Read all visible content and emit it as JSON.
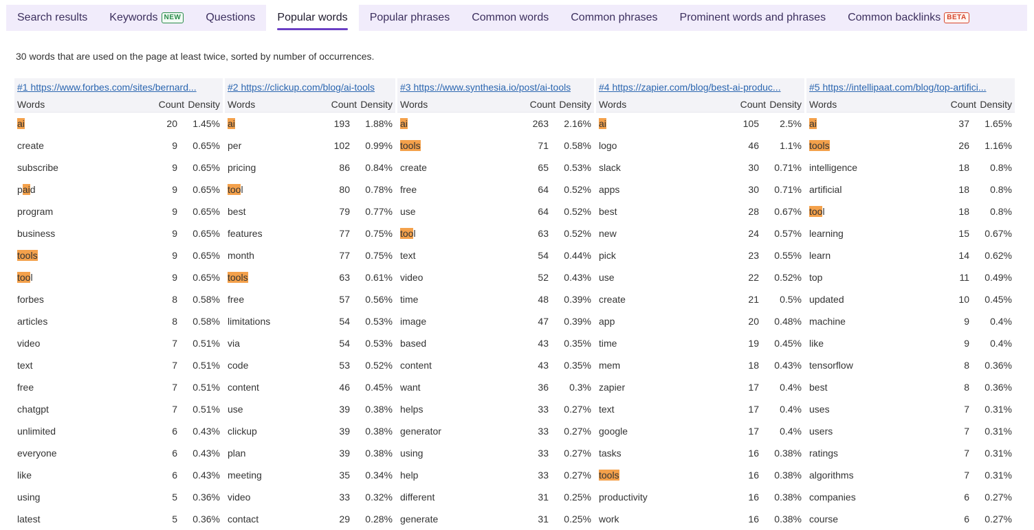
{
  "tabs": [
    {
      "label": "Search results"
    },
    {
      "label": "Keywords",
      "badge": "NEW"
    },
    {
      "label": "Questions"
    },
    {
      "label": "Popular words",
      "active": true
    },
    {
      "label": "Popular phrases"
    },
    {
      "label": "Common words"
    },
    {
      "label": "Common phrases"
    },
    {
      "label": "Prominent words and phrases"
    },
    {
      "label": "Common backlinks",
      "badge": "BETA"
    }
  ],
  "summary": "30 words that are used on the page at least twice, sorted by number of occurrences.",
  "headers": {
    "words": "Words",
    "count": "Count",
    "density": "Density"
  },
  "highlight_color": "#f4a14b",
  "columns": [
    {
      "title": "#1 https://www.forbes.com/sites/bernard...",
      "rows": [
        [
          "ai",
          "20",
          "1.45%"
        ],
        [
          "create",
          "9",
          "0.65%"
        ],
        [
          "subscribe",
          "9",
          "0.65%"
        ],
        [
          "paid",
          "9",
          "0.65%"
        ],
        [
          "program",
          "9",
          "0.65%"
        ],
        [
          "business",
          "9",
          "0.65%"
        ],
        [
          "tools",
          "9",
          "0.65%"
        ],
        [
          "tool",
          "9",
          "0.65%"
        ],
        [
          "forbes",
          "8",
          "0.58%"
        ],
        [
          "articles",
          "8",
          "0.58%"
        ],
        [
          "video",
          "7",
          "0.51%"
        ],
        [
          "text",
          "7",
          "0.51%"
        ],
        [
          "free",
          "7",
          "0.51%"
        ],
        [
          "chatgpt",
          "7",
          "0.51%"
        ],
        [
          "unlimited",
          "6",
          "0.43%"
        ],
        [
          "everyone",
          "6",
          "0.43%"
        ],
        [
          "like",
          "6",
          "0.43%"
        ],
        [
          "using",
          "5",
          "0.36%"
        ],
        [
          "latest",
          "5",
          "0.36%"
        ]
      ]
    },
    {
      "title": "#2 https://clickup.com/blog/ai-tools",
      "rows": [
        [
          "ai",
          "193",
          "1.88%"
        ],
        [
          "per",
          "102",
          "0.99%"
        ],
        [
          "pricing",
          "86",
          "0.84%"
        ],
        [
          "tool",
          "80",
          "0.78%"
        ],
        [
          "best",
          "79",
          "0.77%"
        ],
        [
          "features",
          "77",
          "0.75%"
        ],
        [
          "month",
          "77",
          "0.75%"
        ],
        [
          "tools",
          "63",
          "0.61%"
        ],
        [
          "free",
          "57",
          "0.56%"
        ],
        [
          "limitations",
          "54",
          "0.53%"
        ],
        [
          "via",
          "54",
          "0.53%"
        ],
        [
          "code",
          "53",
          "0.52%"
        ],
        [
          "content",
          "46",
          "0.45%"
        ],
        [
          "use",
          "39",
          "0.38%"
        ],
        [
          "clickup",
          "39",
          "0.38%"
        ],
        [
          "plan",
          "39",
          "0.38%"
        ],
        [
          "meeting",
          "35",
          "0.34%"
        ],
        [
          "video",
          "33",
          "0.32%"
        ],
        [
          "contact",
          "29",
          "0.28%"
        ]
      ]
    },
    {
      "title": "#3 https://www.synthesia.io/post/ai-tools",
      "rows": [
        [
          "ai",
          "263",
          "2.16%"
        ],
        [
          "tools",
          "71",
          "0.58%"
        ],
        [
          "create",
          "65",
          "0.53%"
        ],
        [
          "free",
          "64",
          "0.52%"
        ],
        [
          "use",
          "64",
          "0.52%"
        ],
        [
          "tool",
          "63",
          "0.52%"
        ],
        [
          "text",
          "54",
          "0.44%"
        ],
        [
          "video",
          "52",
          "0.43%"
        ],
        [
          "time",
          "48",
          "0.39%"
        ],
        [
          "image",
          "47",
          "0.39%"
        ],
        [
          "based",
          "43",
          "0.35%"
        ],
        [
          "content",
          "43",
          "0.35%"
        ],
        [
          "want",
          "36",
          "0.3%"
        ],
        [
          "helps",
          "33",
          "0.27%"
        ],
        [
          "generator",
          "33",
          "0.27%"
        ],
        [
          "using",
          "33",
          "0.27%"
        ],
        [
          "help",
          "33",
          "0.27%"
        ],
        [
          "different",
          "31",
          "0.25%"
        ],
        [
          "generate",
          "31",
          "0.25%"
        ]
      ]
    },
    {
      "title": "#4 https://zapier.com/blog/best-ai-produc...",
      "rows": [
        [
          "ai",
          "105",
          "2.5%"
        ],
        [
          "logo",
          "46",
          "1.1%"
        ],
        [
          "slack",
          "30",
          "0.71%"
        ],
        [
          "apps",
          "30",
          "0.71%"
        ],
        [
          "best",
          "28",
          "0.67%"
        ],
        [
          "new",
          "24",
          "0.57%"
        ],
        [
          "pick",
          "23",
          "0.55%"
        ],
        [
          "use",
          "22",
          "0.52%"
        ],
        [
          "create",
          "21",
          "0.5%"
        ],
        [
          "app",
          "20",
          "0.48%"
        ],
        [
          "time",
          "19",
          "0.45%"
        ],
        [
          "mem",
          "18",
          "0.43%"
        ],
        [
          "zapier",
          "17",
          "0.4%"
        ],
        [
          "text",
          "17",
          "0.4%"
        ],
        [
          "google",
          "17",
          "0.4%"
        ],
        [
          "tasks",
          "16",
          "0.38%"
        ],
        [
          "tools",
          "16",
          "0.38%"
        ],
        [
          "productivity",
          "16",
          "0.38%"
        ],
        [
          "work",
          "16",
          "0.38%"
        ]
      ]
    },
    {
      "title": "#5 https://intellipaat.com/blog/top-artifici...",
      "rows": [
        [
          "ai",
          "37",
          "1.65%"
        ],
        [
          "tools",
          "26",
          "1.16%"
        ],
        [
          "intelligence",
          "18",
          "0.8%"
        ],
        [
          "artificial",
          "18",
          "0.8%"
        ],
        [
          "tool",
          "18",
          "0.8%"
        ],
        [
          "learning",
          "15",
          "0.67%"
        ],
        [
          "learn",
          "14",
          "0.62%"
        ],
        [
          "top",
          "11",
          "0.49%"
        ],
        [
          "updated",
          "10",
          "0.45%"
        ],
        [
          "machine",
          "9",
          "0.4%"
        ],
        [
          "like",
          "9",
          "0.4%"
        ],
        [
          "tensorflow",
          "8",
          "0.36%"
        ],
        [
          "best",
          "8",
          "0.36%"
        ],
        [
          "uses",
          "7",
          "0.31%"
        ],
        [
          "users",
          "7",
          "0.31%"
        ],
        [
          "ratings",
          "7",
          "0.31%"
        ],
        [
          "algorithms",
          "7",
          "0.31%"
        ],
        [
          "companies",
          "6",
          "0.27%"
        ],
        [
          "course",
          "6",
          "0.27%"
        ]
      ]
    }
  ]
}
